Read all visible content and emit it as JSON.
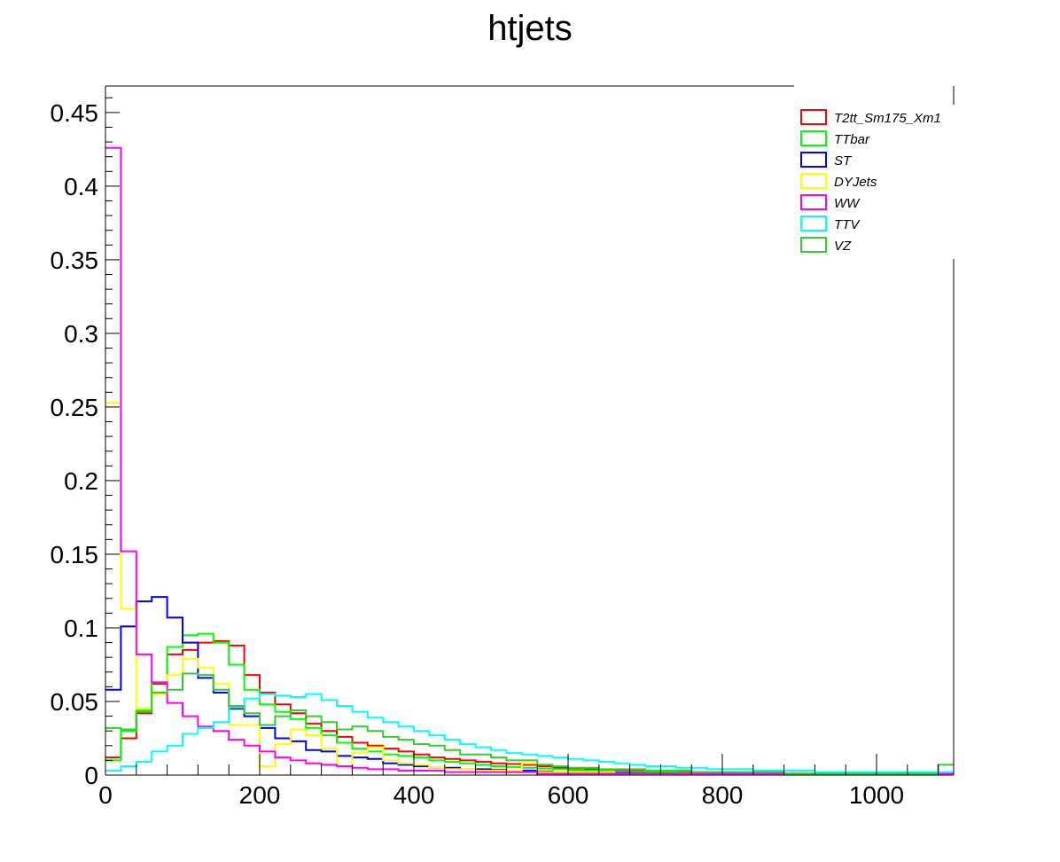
{
  "chart_data": {
    "type": "histogram",
    "title": "htjets",
    "xlabel": "",
    "ylabel": "",
    "xlim": [
      0,
      1100
    ],
    "ylim": [
      0,
      0.468
    ],
    "bin_width": 20,
    "grid": false,
    "legend_position": "top-right",
    "x_ticks": [
      "0",
      "200",
      "400",
      "600",
      "800",
      "1000"
    ],
    "y_ticks": [
      "0",
      "0.05",
      "0.1",
      "0.15",
      "0.2",
      "0.25",
      "0.3",
      "0.35",
      "0.4",
      "0.45"
    ],
    "series": [
      {
        "name": "T2tt_Sm175_Xm1",
        "color": "#ff0000",
        "values": [
          0.012,
          0.025,
          0.042,
          0.062,
          0.082,
          0.085,
          0.09,
          0.091,
          0.088,
          0.068,
          0.056,
          0.048,
          0.042,
          0.035,
          0.03,
          0.026,
          0.022,
          0.02,
          0.018,
          0.016,
          0.014,
          0.012,
          0.011,
          0.01,
          0.009,
          0.008,
          0.0075,
          0.007,
          0.006,
          0.005,
          0.0045,
          0.004,
          0.0035,
          0.003,
          0.0028,
          0.0025,
          0.0022,
          0.002,
          0.0018,
          0.0016,
          0.0015,
          0.0014,
          0.0012,
          0.0011,
          0.001,
          0.001,
          0.0009,
          0.0008,
          0.0008,
          0.0007,
          0.0007,
          0.0006,
          0.0006,
          0.0005,
          0.0005
        ]
      },
      {
        "name": "TTbar",
        "color": "#00ff00",
        "values": [
          0.01,
          0.03,
          0.044,
          0.063,
          0.087,
          0.095,
          0.096,
          0.09,
          0.075,
          0.058,
          0.048,
          0.043,
          0.038,
          0.032,
          0.027,
          0.022,
          0.018,
          0.016,
          0.014,
          0.013,
          0.012,
          0.01,
          0.009,
          0.008,
          0.007,
          0.006,
          0.0055,
          0.005,
          0.0045,
          0.004,
          0.0035,
          0.003,
          0.0028,
          0.0025,
          0.0022,
          0.002,
          0.0018,
          0.0016,
          0.0015,
          0.0013,
          0.0012,
          0.0011,
          0.001,
          0.0009,
          0.0009,
          0.0008,
          0.0007,
          0.0007,
          0.0006,
          0.0006,
          0.0005,
          0.0005,
          0.0005,
          0.0004,
          0.0004
        ]
      },
      {
        "name": "ST",
        "color": "#0000ff",
        "values": [
          0.058,
          0.101,
          0.118,
          0.121,
          0.107,
          0.09,
          0.066,
          0.056,
          0.045,
          0.04,
          0.032,
          0.025,
          0.023,
          0.017,
          0.016,
          0.013,
          0.012,
          0.011,
          0.008,
          0.007,
          0.006,
          0.005,
          0.005,
          0.004,
          0.004,
          0.0035,
          0.003,
          0.003,
          0.0025,
          0.002,
          0.002,
          0.0018,
          0.0016,
          0.0015,
          0.0013,
          0.0012,
          0.0011,
          0.001,
          0.001,
          0.0009,
          0.0008,
          0.0008,
          0.0007,
          0.0007,
          0.0006,
          0.0006,
          0.0005,
          0.0005,
          0.0005,
          0.0004,
          0.0004,
          0.0004,
          0.0003,
          0.0003,
          0.0003
        ]
      },
      {
        "name": "DYJets",
        "color": "#ffff00",
        "values": [
          0.253,
          0.113,
          0.045,
          0.055,
          0.068,
          0.079,
          0.073,
          0.062,
          0.034,
          0.034,
          0.006,
          0.021,
          0.031,
          0.027,
          0.018,
          0.006,
          0.015,
          0.019,
          0.01,
          0.008,
          0.007,
          0.005,
          0.004,
          0.004,
          0.003,
          0.003,
          0.003,
          0.008,
          0.002,
          0.002,
          0.002,
          0.002,
          0.002,
          0.001,
          0.001,
          0.001,
          0.001,
          0.001,
          0.001,
          0.001,
          0.001,
          0.001,
          0.001,
          0.001,
          0.0005,
          0.0005,
          0.0005,
          0.0005,
          0.0005,
          0.0005,
          0.0005,
          0.0005,
          0.0005,
          0.0005,
          0.0005
        ]
      },
      {
        "name": "WW",
        "color": "#ff00ff",
        "values": [
          0.426,
          0.152,
          0.082,
          0.063,
          0.049,
          0.04,
          0.033,
          0.03,
          0.024,
          0.02,
          0.016,
          0.012,
          0.01,
          0.008,
          0.007,
          0.006,
          0.005,
          0.004,
          0.004,
          0.003,
          0.003,
          0.003,
          0.002,
          0.002,
          0.002,
          0.002,
          0.002,
          0.002,
          0.001,
          0.001,
          0.001,
          0.001,
          0.001,
          0.001,
          0.001,
          0.001,
          0.001,
          0.001,
          0.001,
          0.001,
          0.001,
          0.001,
          0.001,
          0.001,
          0.001,
          0.001,
          0.001,
          0.001,
          0.001,
          0.001,
          0.001,
          0.001,
          0.001,
          0.001,
          0.001
        ]
      },
      {
        "name": "TTV",
        "color": "#00ffff",
        "values": [
          0.003,
          0.006,
          0.009,
          0.016,
          0.02,
          0.028,
          0.032,
          0.036,
          0.046,
          0.052,
          0.055,
          0.054,
          0.053,
          0.055,
          0.051,
          0.047,
          0.043,
          0.039,
          0.036,
          0.033,
          0.03,
          0.027,
          0.024,
          0.021,
          0.019,
          0.017,
          0.015,
          0.014,
          0.013,
          0.012,
          0.011,
          0.01,
          0.009,
          0.008,
          0.007,
          0.006,
          0.006,
          0.005,
          0.005,
          0.004,
          0.004,
          0.004,
          0.003,
          0.003,
          0.003,
          0.003,
          0.002,
          0.002,
          0.002,
          0.002,
          0.002,
          0.002,
          0.002,
          0.002,
          0.002
        ]
      },
      {
        "name": "VZ",
        "color": "#33cc33",
        "values": [
          0.032,
          0.031,
          0.043,
          0.056,
          0.058,
          0.069,
          0.068,
          0.058,
          0.047,
          0.042,
          0.034,
          0.04,
          0.044,
          0.04,
          0.036,
          0.031,
          0.033,
          0.03,
          0.026,
          0.024,
          0.021,
          0.02,
          0.017,
          0.014,
          0.014,
          0.012,
          0.01,
          0.01,
          0.007,
          0.006,
          0.005,
          0.005,
          0.004,
          0.004,
          0.004,
          0.003,
          0.003,
          0.003,
          0.002,
          0.002,
          0.002,
          0.002,
          0.002,
          0.002,
          0.001,
          0.001,
          0.001,
          0.001,
          0.001,
          0.001,
          0.001,
          0.001,
          0.001,
          0.001,
          0.007
        ]
      }
    ]
  }
}
